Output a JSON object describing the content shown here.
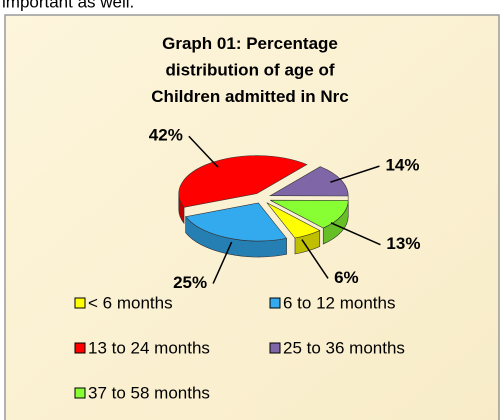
{
  "caption": "important as well.",
  "chart_data": {
    "type": "pie",
    "title": "Graph 01: Percentage distribution of age of Children admitted in Nrc",
    "categories": [
      "< 6 months",
      "6 to 12 months",
      "13 to 24 months",
      "25 to 36 months",
      "37 to 58 months"
    ],
    "values": [
      6,
      25,
      42,
      14,
      13
    ],
    "value_labels": [
      "6%",
      "25%",
      "42%",
      "14%",
      "13%"
    ],
    "colors": [
      "#ffff00",
      "#33aaee",
      "#ff0000",
      "#7f66a6",
      "#88ff33"
    ],
    "legend": "bottom"
  }
}
